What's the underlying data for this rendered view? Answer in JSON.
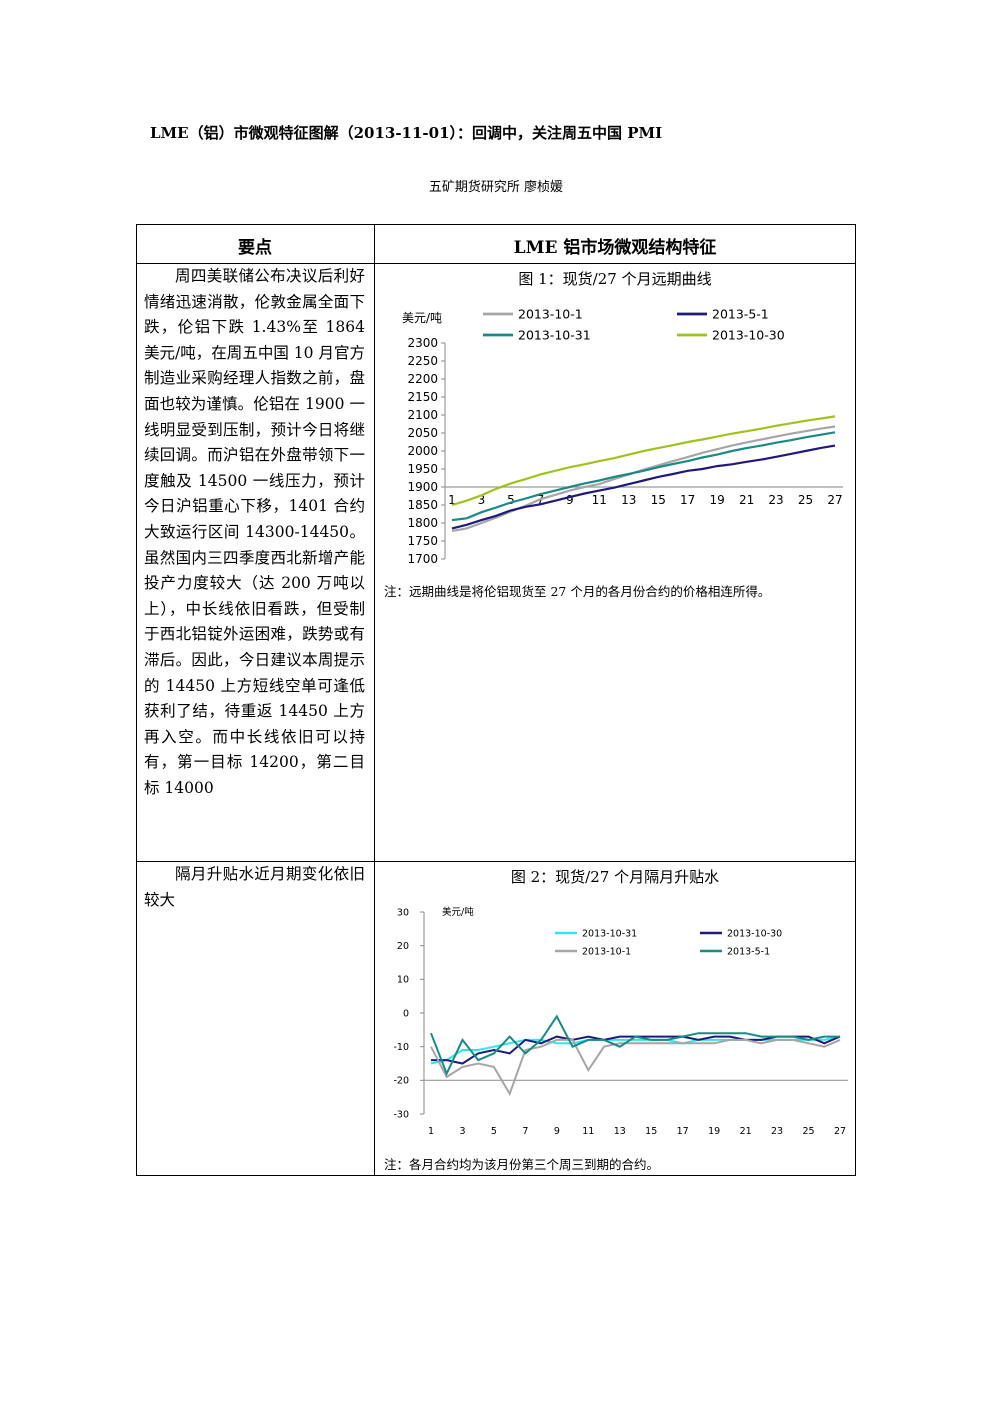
{
  "title": "LME（铝）市微观特征图解（2013-11-01）：回调中，关注周五中国 PMI",
  "author": "五矿期货研究所  廖桢媛",
  "table": {
    "header_left": "要点",
    "header_right": "LME 铝市场微观结构特征",
    "row1_text": "周四美联储公布决议后利好情绪迅速消散，伦敦金属全面下跌，伦铝下跌 1.43%至 1864 美元/吨，在周五中国 10 月官方制造业采购经理人指数之前，盘面也较为谨慎。伦铝在 1900 一线明显受到压制，预计今日将继续回调。而沪铝在外盘带领下一度触及 14500 一线压力，预计今日沪铝重心下移，1401 合约大致运行区间 14300-14450。虽然国内三四季度西北新增产能投产力度较大（达 200 万吨以上），中长线依旧看跌，但受制于西北铝锭外运困难，跌势或有滞后。因此，今日建议本周提示的 14450 上方短线空单可逢低获利了结，待重返 14450 上方再入空。而中长线依旧可以持有，第一目标 14200，第二目标 14000",
    "row2_text": "隔月升贴水近月期变化依旧较大",
    "fig1_title": "图 1：现货/27 个月远期曲线",
    "fig1_note": "注：远期曲线是将伦铝现货至 27 个月的各月份合约的价格相连所得。",
    "fig2_title": "图 2：现货/27 个月隔月升贴水",
    "fig2_note": "注：各月合约均为该月份第三个周三到期的合约。"
  },
  "chart_data": [
    {
      "type": "line",
      "title": "图 1：现货/27 个月远期曲线",
      "ylabel": "美元/吨",
      "ylim": [
        1700,
        2300
      ],
      "yticks": [
        1700,
        1750,
        1800,
        1850,
        1900,
        1950,
        2000,
        2050,
        2100,
        2150,
        2200,
        2250,
        2300
      ],
      "x": [
        1,
        2,
        3,
        4,
        5,
        6,
        7,
        8,
        9,
        10,
        11,
        12,
        13,
        14,
        15,
        16,
        17,
        18,
        19,
        20,
        21,
        22,
        23,
        24,
        25,
        26,
        27
      ],
      "xticks": [
        "1",
        "3",
        "5",
        "7",
        "9",
        "11",
        "13",
        "15",
        "17",
        "19",
        "21",
        "23",
        "25",
        "27"
      ],
      "axis_cross": 1900,
      "series": [
        {
          "name": "2013-10-1",
          "color": "#a6a6a6",
          "values": [
            1778,
            1785,
            1800,
            1815,
            1832,
            1848,
            1866,
            1878,
            1890,
            1900,
            1908,
            1922,
            1935,
            1948,
            1960,
            1972,
            1983,
            1995,
            2005,
            2015,
            2024,
            2032,
            2040,
            2048,
            2055,
            2062,
            2068
          ]
        },
        {
          "name": "2013-5-1",
          "color": "#1f1a7a",
          "values": [
            1785,
            1795,
            1808,
            1820,
            1835,
            1845,
            1852,
            1862,
            1872,
            1882,
            1890,
            1898,
            1908,
            1918,
            1928,
            1936,
            1945,
            1950,
            1958,
            1963,
            1970,
            1976,
            1984,
            1992,
            2000,
            2008,
            2015
          ]
        },
        {
          "name": "2013-10-31",
          "color": "#1a8a84",
          "values": [
            1808,
            1813,
            1830,
            1843,
            1857,
            1868,
            1880,
            1890,
            1900,
            1910,
            1918,
            1928,
            1936,
            1945,
            1955,
            1964,
            1972,
            1982,
            1990,
            2000,
            2008,
            2015,
            2023,
            2030,
            2038,
            2045,
            2052
          ]
        },
        {
          "name": "2013-10-30",
          "color": "#9dc31d",
          "values": [
            1850,
            1862,
            1877,
            1895,
            1910,
            1922,
            1935,
            1945,
            1955,
            1963,
            1972,
            1980,
            1990,
            2000,
            2008,
            2016,
            2025,
            2032,
            2040,
            2048,
            2055,
            2062,
            2070,
            2077,
            2084,
            2090,
            2096
          ]
        }
      ]
    },
    {
      "type": "line",
      "title": "图 2：现货/27 个月隔月升贴水",
      "ylabel": "美元/吨",
      "ylim": [
        -30,
        30
      ],
      "yticks": [
        -30,
        -20,
        -10,
        0,
        10,
        20,
        30
      ],
      "x": [
        1,
        2,
        3,
        4,
        5,
        6,
        7,
        8,
        9,
        10,
        11,
        12,
        13,
        14,
        15,
        16,
        17,
        18,
        19,
        20,
        21,
        22,
        23,
        24,
        25,
        26,
        27
      ],
      "xticks": [
        "1",
        "3",
        "5",
        "7",
        "9",
        "11",
        "13",
        "15",
        "17",
        "19",
        "21",
        "23",
        "25",
        "27"
      ],
      "axis_cross": -20,
      "series": [
        {
          "name": "2013-10-31",
          "color": "#30e6ee",
          "values": [
            -15,
            -14,
            -11,
            -11,
            -10,
            -9,
            -8,
            -8,
            -9,
            -9,
            -8,
            -8,
            -8,
            -8,
            -8,
            -8,
            -9,
            -8,
            -8,
            -8,
            -8,
            -8,
            -8,
            -8,
            -8,
            -8,
            -7
          ]
        },
        {
          "name": "2013-10-30",
          "color": "#1f1a7a",
          "values": [
            -14,
            -14,
            -15,
            -12,
            -11,
            -12,
            -8,
            -9,
            -7,
            -8,
            -7,
            -8,
            -7,
            -7,
            -7,
            -7,
            -7,
            -8,
            -7,
            -7,
            -8,
            -8,
            -7,
            -7,
            -7,
            -9,
            -7
          ]
        },
        {
          "name": "2013-10-1",
          "color": "#a6a6a6",
          "values": [
            -10,
            -19,
            -16,
            -15,
            -16,
            -24,
            -11,
            -10,
            -8,
            -8,
            -17,
            -10,
            -9,
            -9,
            -9,
            -9,
            -9,
            -9,
            -9,
            -8,
            -8,
            -9,
            -8,
            -8,
            -9,
            -10,
            -8
          ]
        },
        {
          "name": "2013-5-1",
          "color": "#1a8a84",
          "values": [
            -6,
            -18,
            -8,
            -14,
            -12,
            -7,
            -12,
            -8,
            -1,
            -10,
            -8,
            -8,
            -10,
            -7,
            -8,
            -8,
            -7,
            -6,
            -6,
            -6,
            -6,
            -7,
            -7,
            -7,
            -8,
            -7,
            -7
          ]
        }
      ]
    }
  ]
}
